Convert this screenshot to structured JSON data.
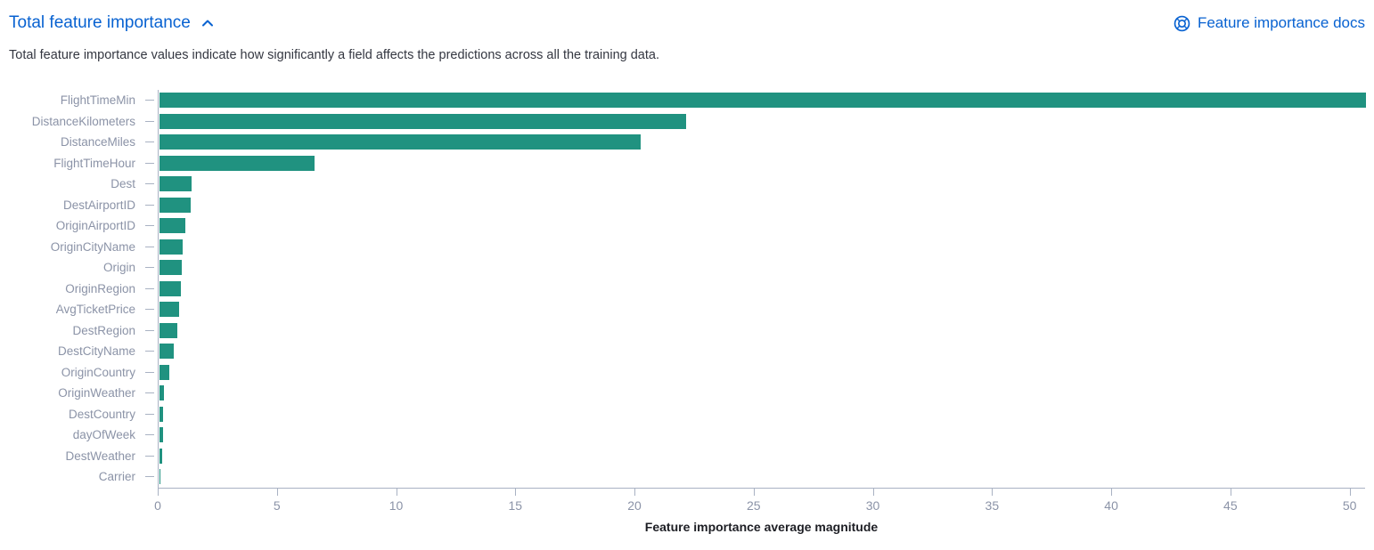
{
  "header": {
    "title": "Total feature importance",
    "docs_link_label": "Feature importance docs",
    "description": "Total feature importance values indicate how significantly a field affects the predictions across all the training data."
  },
  "colors": {
    "link_blue": "#0862D1",
    "bar_teal": "#209280",
    "axis_line": "#A9B2C3",
    "axis_label": "#8B93A7",
    "text_dark": "#343741",
    "axis_title": "#1D1E24"
  },
  "chart_data": {
    "type": "bar",
    "orientation": "horizontal",
    "title": "Total feature importance",
    "xlabel": "Feature importance average magnitude",
    "ylabel": "",
    "xlim": [
      0,
      50.65
    ],
    "xticks": [
      0,
      5,
      10,
      15,
      20,
      25,
      30,
      35,
      40,
      45,
      50
    ],
    "grid": false,
    "bar_color": "#209280",
    "categories": [
      "FlightTimeMin",
      "DistanceKilometers",
      "DistanceMiles",
      "FlightTimeHour",
      "Dest",
      "DestAirportID",
      "OriginAirportID",
      "OriginCityName",
      "Origin",
      "OriginRegion",
      "AvgTicketPrice",
      "DestRegion",
      "DestCityName",
      "OriginCountry",
      "OriginWeather",
      "DestCountry",
      "dayOfWeek",
      "DestWeather",
      "Carrier"
    ],
    "values": [
      50.65,
      22.1,
      20.2,
      6.5,
      1.33,
      1.3,
      1.07,
      0.99,
      0.95,
      0.88,
      0.82,
      0.73,
      0.61,
      0.4,
      0.2,
      0.16,
      0.15,
      0.11,
      0.05
    ]
  }
}
